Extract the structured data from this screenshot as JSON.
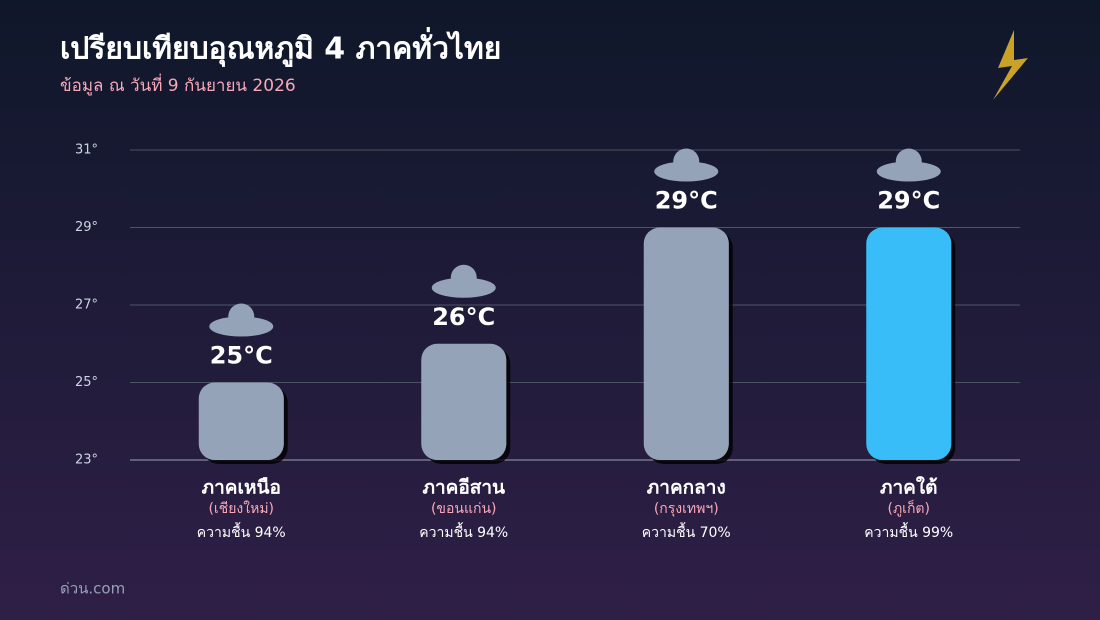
{
  "chart_data": {
    "type": "bar",
    "title": "เปรียบเทียบอุณหภูมิ 4 ภาคทั่วไทย",
    "subtitle": "ข้อมูล ณ วันที่ 9 กันยายน 2026",
    "source": "ด่วน.com",
    "categories": [
      "ภาคเหนือ",
      "ภาคอีสาน",
      "ภาคกลาง",
      "ภาคใต้"
    ],
    "cities": [
      "(เชียงใหม่)",
      "(ขอนแก่น)",
      "(กรุงเทพฯ)",
      "(ภูเก็ต)"
    ],
    "humidity_labels": [
      "ความชื้น 94%",
      "ความชื้น 94%",
      "ความชื้น 70%",
      "ความชื้น 99%"
    ],
    "values": [
      25,
      26,
      29,
      29
    ],
    "value_labels": [
      "25°C",
      "26°C",
      "29°C",
      "29°C"
    ],
    "colors": [
      "#94a3b8",
      "#94a3b8",
      "#94a3b8",
      "#38bdf8"
    ],
    "ylim": [
      23,
      31
    ],
    "yticks": [
      {
        "value": 23,
        "label": "23°"
      },
      {
        "value": 25,
        "label": "25°"
      },
      {
        "value": 27,
        "label": "27°"
      },
      {
        "value": 29,
        "label": "29°"
      },
      {
        "value": 31,
        "label": "31°"
      }
    ],
    "grid": true
  }
}
